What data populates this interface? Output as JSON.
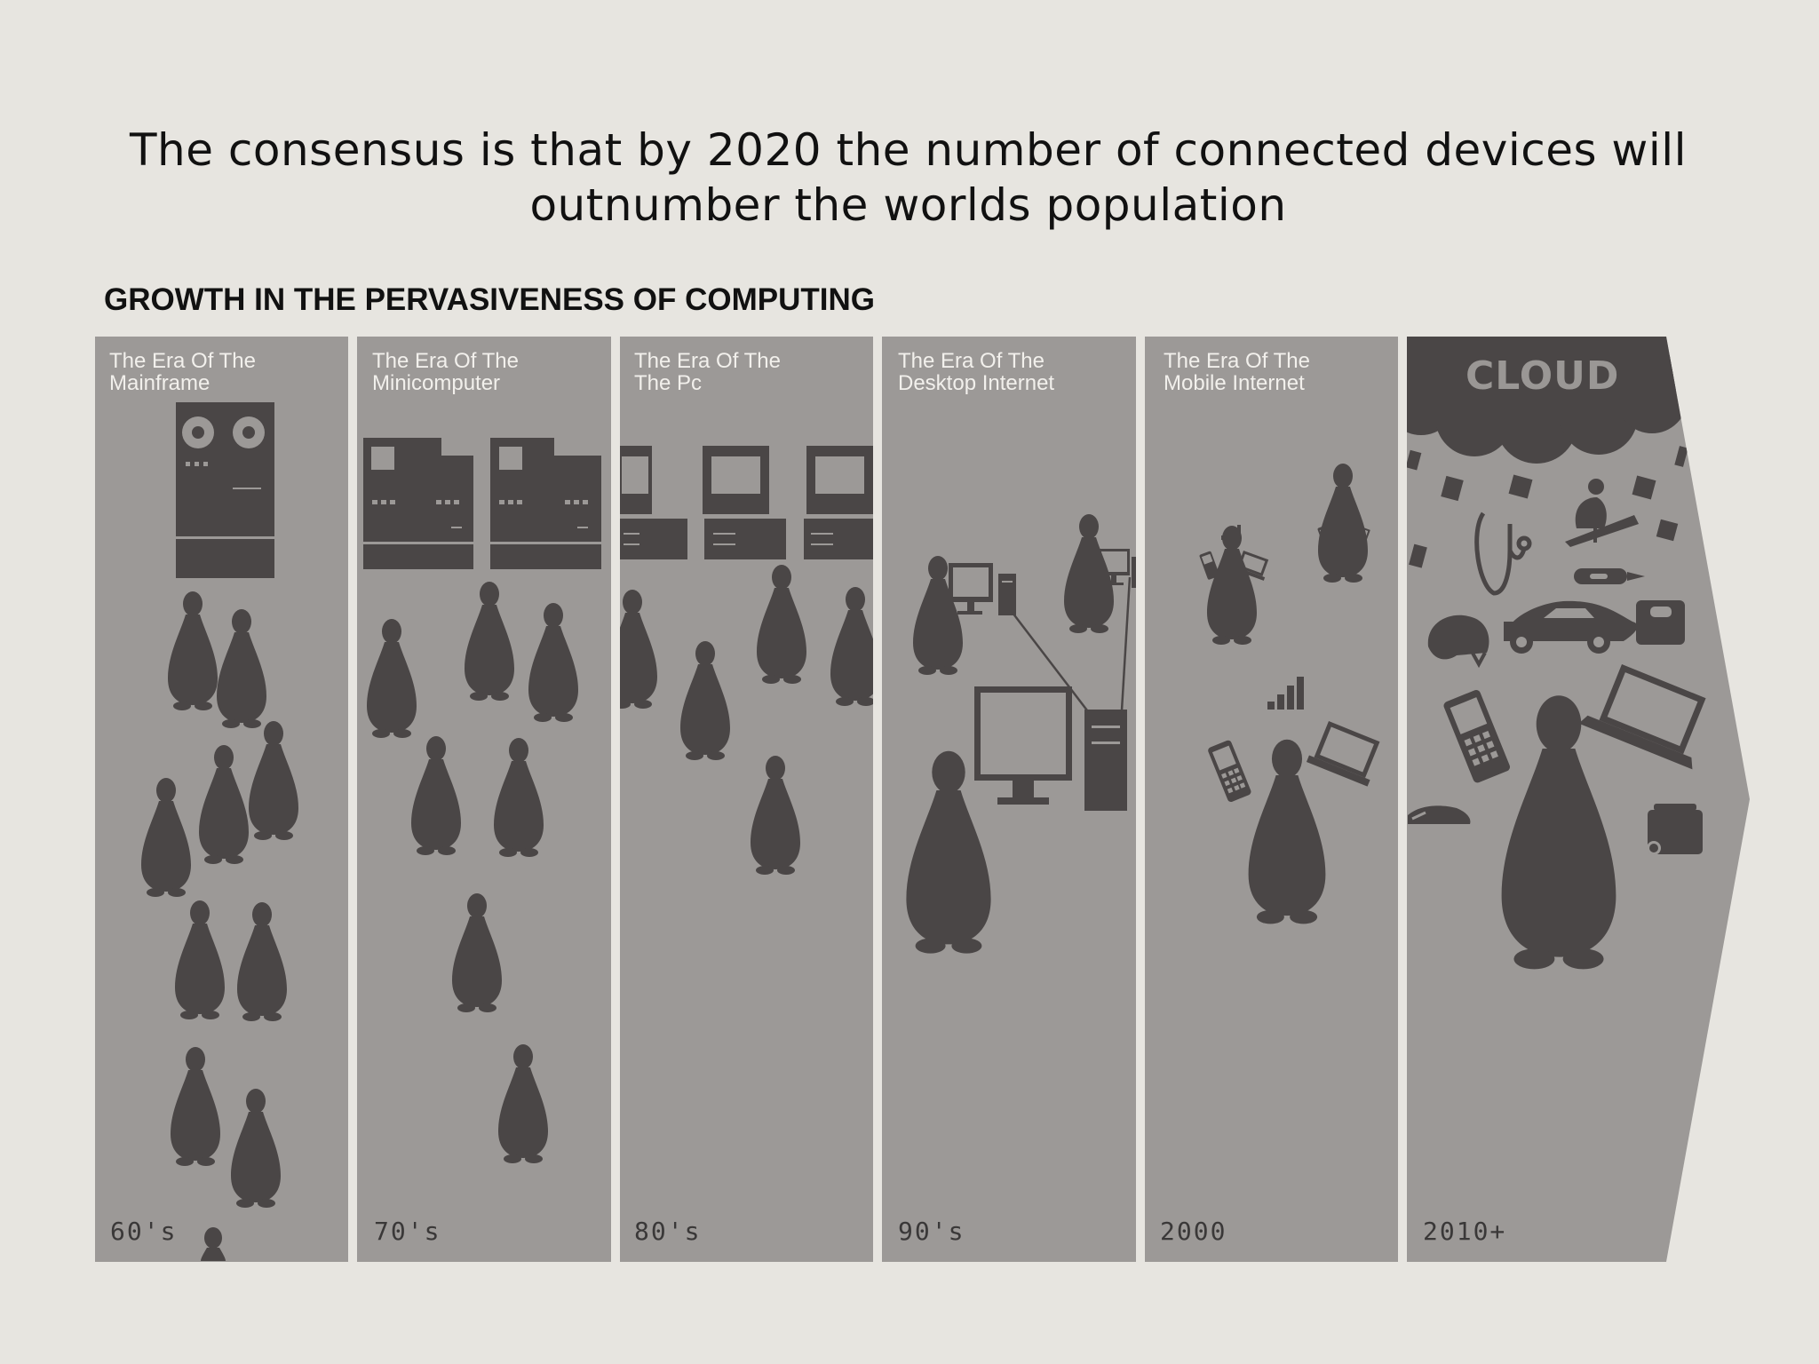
{
  "headline": "The consensus is that by 2020 the number of connected devices will outnumber the worlds population",
  "section_title": "GROWTH IN THE PERVASIVENESS OF COMPUTING",
  "colors": {
    "background": "#e7e5e0",
    "panel": "#9c9997",
    "figure": "#4a4646",
    "label_text": "#f2f0ec"
  },
  "eras": [
    {
      "label": "The Era Of The\nMainframe",
      "decade": "60's"
    },
    {
      "label": "The Era Of The\nMinicomputer",
      "decade": "70's"
    },
    {
      "label": "The Era Of The\nThe Pc",
      "decade": "80's"
    },
    {
      "label": "The Era Of The\nDesktop Internet",
      "decade": "90's"
    },
    {
      "label": "The Era Of The\nMobile Internet",
      "decade": "2000"
    },
    {
      "label": "CLOUD",
      "decade": "2010+"
    }
  ]
}
